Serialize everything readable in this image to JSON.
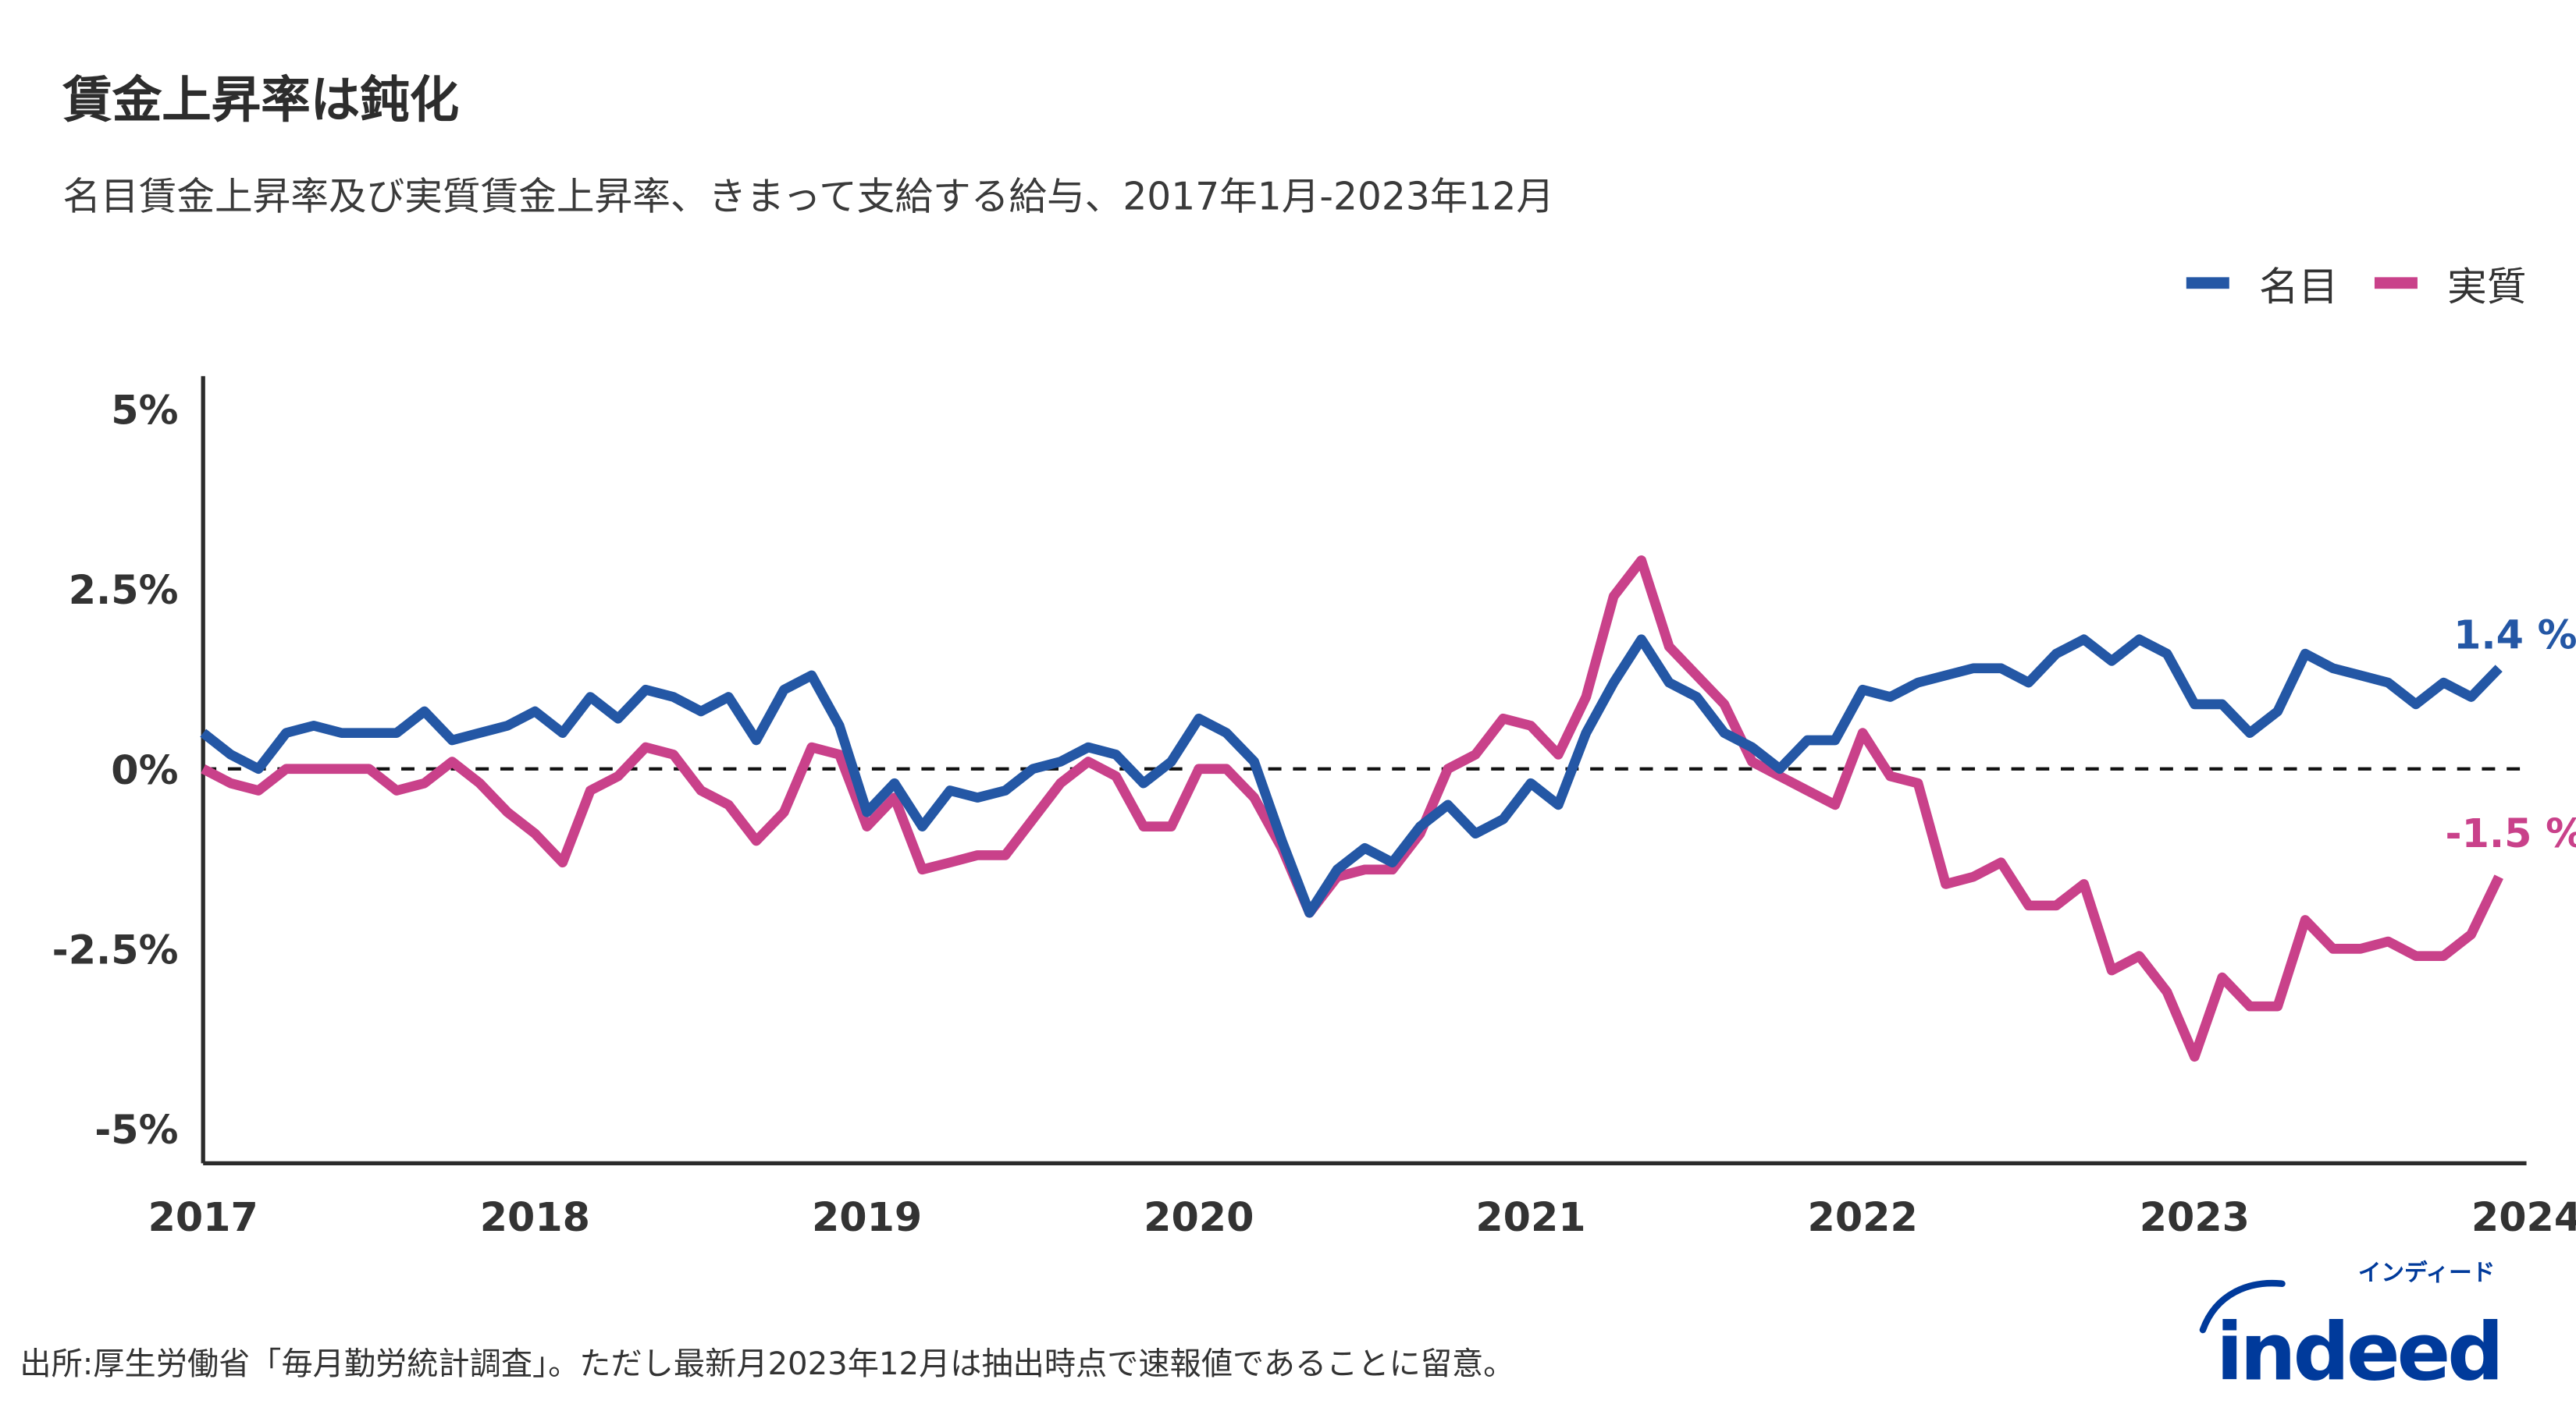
{
  "title": "賃金上昇率は鈍化",
  "subtitle": "名目賃金上昇率及び実質賃金上昇率、きまって支給する給与、2017年1月-2023年12月",
  "footer": "出所:厚生労働省「毎月勤労統計調査」。ただし最新月2023年12月は抽出時点で速報値であることに留意。",
  "logo": {
    "text": "indeed",
    "kana": "インディード",
    "color": "#003a9b"
  },
  "chart_data": {
    "type": "line",
    "title": "賃金上昇率は鈍化",
    "subtitle": "名目賃金上昇率及び実質賃金上昇率、きまって支給する給与、2017年1月-2023年12月",
    "x_start": "2017-01",
    "x_end": "2023-12",
    "frequency": "monthly",
    "xlim": [
      2017,
      2024
    ],
    "x_ticks": [
      "2017",
      "2018",
      "2019",
      "2020",
      "2021",
      "2022",
      "2023",
      "2024"
    ],
    "ylim": [
      -5.5,
      5.5
    ],
    "y_ticks": [
      5,
      2.5,
      0,
      -2.5,
      -5
    ],
    "y_tick_labels": [
      "5%",
      "2.5%",
      "0%",
      "-2.5%",
      "-5%"
    ],
    "zero_line": "dashed",
    "grid": false,
    "legend_position": "top-right",
    "series": [
      {
        "name": "名目",
        "color": "#2457a5",
        "end_label": "1.4 %",
        "values": [
          0.5,
          0.2,
          0.0,
          0.5,
          0.6,
          0.5,
          0.5,
          0.5,
          0.8,
          0.4,
          0.5,
          0.6,
          0.8,
          0.5,
          1.0,
          0.7,
          1.1,
          1.0,
          0.8,
          1.0,
          0.4,
          1.1,
          1.3,
          0.6,
          -0.6,
          -0.2,
          -0.8,
          -0.3,
          -0.4,
          -0.3,
          0.0,
          0.1,
          0.3,
          0.2,
          -0.2,
          0.1,
          0.7,
          0.5,
          0.1,
          -1.0,
          -2.0,
          -1.4,
          -1.1,
          -1.3,
          -0.8,
          -0.5,
          -0.9,
          -0.7,
          -0.2,
          -0.5,
          0.5,
          1.2,
          1.8,
          1.2,
          1.0,
          0.5,
          0.3,
          0.0,
          0.4,
          0.4,
          1.1,
          1.0,
          1.2,
          1.3,
          1.4,
          1.4,
          1.2,
          1.6,
          1.8,
          1.5,
          1.8,
          1.6,
          0.9,
          0.9,
          0.5,
          0.8,
          1.6,
          1.4,
          1.3,
          1.2,
          0.9,
          1.2,
          1.0,
          1.4
        ]
      },
      {
        "name": "実質",
        "color": "#c9418a",
        "end_label": "-1.5 %",
        "values": [
          0.0,
          -0.2,
          -0.3,
          0.0,
          0.0,
          0.0,
          0.0,
          -0.3,
          -0.2,
          0.1,
          -0.2,
          -0.6,
          -0.9,
          -1.3,
          -0.3,
          -0.1,
          0.3,
          0.2,
          -0.3,
          -0.5,
          -1.0,
          -0.6,
          0.3,
          0.2,
          -0.8,
          -0.4,
          -1.4,
          -1.3,
          -1.2,
          -1.2,
          -0.7,
          -0.2,
          0.1,
          -0.1,
          -0.8,
          -0.8,
          0.0,
          0.0,
          -0.4,
          -1.1,
          -2.0,
          -1.5,
          -1.4,
          -1.4,
          -0.9,
          0.0,
          0.2,
          0.7,
          0.6,
          0.2,
          1.0,
          2.4,
          2.9,
          1.7,
          1.3,
          0.9,
          0.1,
          -0.1,
          -0.3,
          -0.5,
          0.5,
          -0.1,
          -0.2,
          -1.6,
          -1.5,
          -1.3,
          -1.9,
          -1.9,
          -1.6,
          -2.8,
          -2.6,
          -3.1,
          -4.0,
          -2.9,
          -3.3,
          -3.3,
          -2.1,
          -2.5,
          -2.5,
          -2.4,
          -2.6,
          -2.6,
          -2.3,
          -1.5
        ]
      }
    ]
  }
}
